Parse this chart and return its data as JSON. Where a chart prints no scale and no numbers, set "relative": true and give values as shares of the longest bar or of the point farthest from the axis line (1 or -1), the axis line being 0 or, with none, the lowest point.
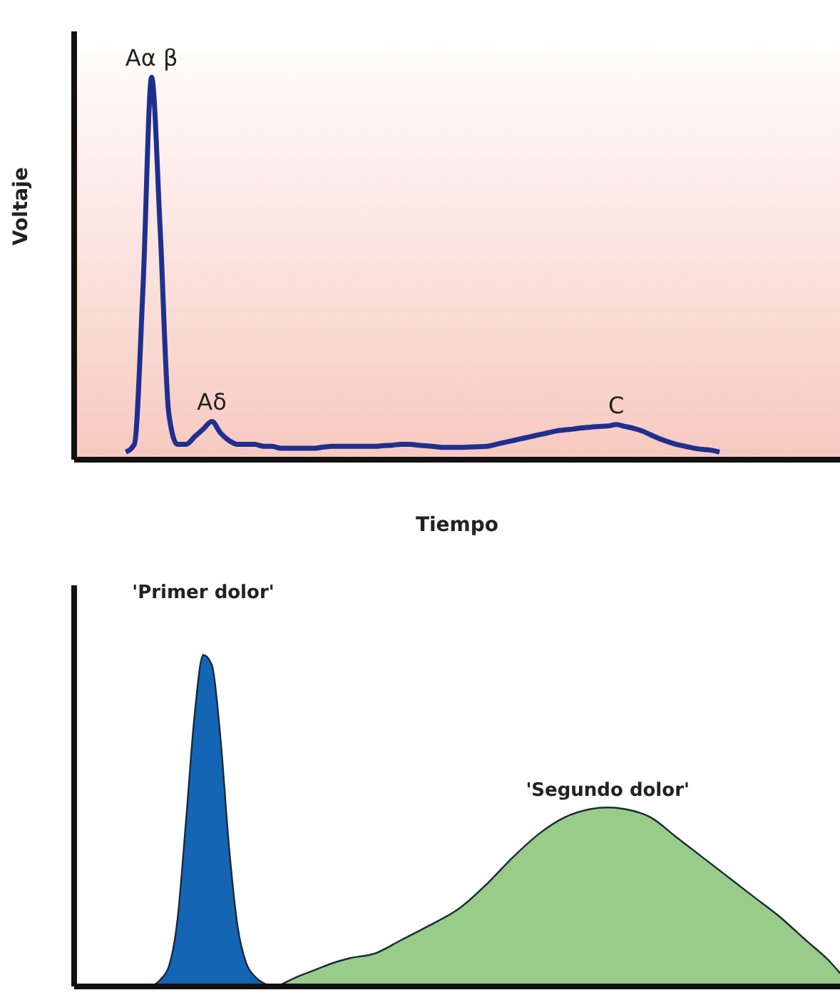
{
  "chart_data": [
    {
      "type": "line",
      "relative": true,
      "xlabel": "Tiempo",
      "ylabel": "Voltaje",
      "categories": [
        null,
        null,
        null,
        null,
        null,
        null,
        null,
        null,
        null,
        null,
        null,
        null,
        null,
        null,
        null,
        null,
        null,
        null,
        null,
        null,
        null,
        null,
        null,
        null,
        null,
        null,
        null,
        null,
        null,
        null,
        null,
        null,
        null,
        null,
        null,
        null,
        null,
        null,
        null,
        null,
        null,
        null,
        null,
        null,
        null,
        null,
        null,
        null,
        null,
        null,
        null,
        null,
        null,
        null,
        null,
        null,
        null,
        null,
        null,
        null,
        null,
        null,
        null,
        null,
        null,
        null,
        null,
        null,
        null,
        null,
        null,
        null,
        null,
        null,
        null,
        null,
        null,
        null,
        null,
        null,
        null,
        null,
        null,
        null,
        null,
        null,
        null,
        null,
        null,
        null
      ],
      "series": [
        {
          "color": "#1f2f8f",
          "values": [
            null,
            null,
            null,
            null,
            null,
            null,
            0.02,
            0.04,
            0.45,
            1,
            0.6,
            0.12,
            0.04,
            0.04,
            0.06,
            0.08,
            0.1,
            0.07,
            0.05,
            0.04,
            0.04,
            0.04,
            0.035,
            0.035,
            0.03,
            0.03,
            0.03,
            0.03,
            0.03,
            0.033,
            0.035,
            0.035,
            0.035,
            0.035,
            0.035,
            0.035,
            0.037,
            0.038,
            0.04,
            0.04,
            0.038,
            0.036,
            0.034,
            0.032,
            0.032,
            0.032,
            0.033,
            0.034,
            0.035,
            0.04,
            0.045,
            0.05,
            0.055,
            0.06,
            0.065,
            0.07,
            0.075,
            0.078,
            0.08,
            0.083,
            0.085,
            0.087,
            0.088,
            0.092,
            0.087,
            0.082,
            0.075,
            0.065,
            0.055,
            0.047,
            0.04,
            0.035,
            0.03,
            0.027,
            0.025,
            0.02,
            null,
            null,
            null,
            null,
            null,
            null,
            null,
            null,
            null,
            null,
            null,
            null,
            null,
            null
          ]
        }
      ],
      "annotations": [
        {
          "text": "Aα β",
          "y": 1
        },
        {
          "text": "Aδ",
          "y": 0.1
        },
        {
          "text": "C",
          "y": 0.092
        }
      ]
    },
    {
      "type": "area",
      "relative": true,
      "categories": [
        null,
        null,
        null,
        null,
        null,
        null,
        null,
        null,
        null,
        null,
        null,
        null,
        null,
        null,
        null,
        null,
        null,
        null,
        null,
        null,
        null,
        null,
        null,
        null,
        null,
        null,
        null,
        null,
        null,
        null,
        null,
        null,
        null,
        null,
        null,
        null,
        null,
        null,
        null,
        null,
        null,
        null,
        null,
        null,
        null,
        null,
        null,
        null,
        null,
        null,
        null,
        null,
        null,
        null,
        null,
        null,
        null,
        null,
        null,
        null,
        null,
        null,
        null,
        null,
        null,
        null,
        null,
        null,
        null,
        null,
        null,
        null,
        null,
        null,
        null,
        null,
        null,
        null,
        null,
        null,
        null,
        null,
        null,
        null,
        null,
        null,
        null,
        null,
        null,
        null
      ],
      "series": [
        {
          "color": "#1565b5",
          "values": [
            null,
            null,
            null,
            null,
            null,
            null,
            null,
            null,
            null,
            0,
            0.02,
            0.06,
            0.2,
            0.5,
            0.82,
            1,
            0.97,
            0.75,
            0.42,
            0.18,
            0.07,
            0.03,
            0.01,
            0,
            null,
            null,
            null,
            null,
            null,
            null,
            null,
            null,
            null,
            null,
            null,
            null,
            null,
            null,
            null,
            null,
            null,
            null,
            null,
            null,
            null,
            null,
            null,
            null,
            null,
            null,
            null,
            null,
            null,
            null,
            null,
            null,
            null,
            null,
            null,
            null,
            null,
            null,
            null,
            null,
            null,
            null,
            null,
            null,
            null,
            null,
            null,
            null,
            null,
            null,
            null,
            null,
            null,
            null,
            null,
            null,
            null,
            null,
            null,
            null,
            null,
            null,
            null,
            null,
            null,
            null
          ]
        },
        {
          "color": "#98cc88",
          "values": [
            null,
            null,
            null,
            null,
            null,
            null,
            null,
            null,
            null,
            null,
            null,
            null,
            null,
            null,
            null,
            null,
            null,
            null,
            null,
            null,
            null,
            null,
            null,
            null,
            0.005,
            null,
            0.03,
            null,
            0.05,
            null,
            0.07,
            null,
            0.085,
            null,
            null,
            0.1,
            null,
            null,
            0.14,
            null,
            null,
            0.18,
            null,
            null,
            null,
            0.24,
            null,
            null,
            0.31,
            null,
            null,
            0.39,
            null,
            null,
            0.46,
            null,
            null,
            0.51,
            null,
            null,
            0.535,
            null,
            0.54,
            null,
            0.535,
            null,
            null,
            0.51,
            null,
            null,
            0.45,
            null,
            null,
            0.39,
            null,
            null,
            0.33,
            null,
            null,
            0.27,
            null,
            null,
            0.21,
            null,
            null,
            0.14,
            null,
            null,
            0.07,
            0.04
          ]
        }
      ],
      "annotations": [
        {
          "text": "'Primer dolor'",
          "y": 1
        },
        {
          "text": "'Segundo dolor'",
          "y": 0.54
        }
      ]
    }
  ]
}
